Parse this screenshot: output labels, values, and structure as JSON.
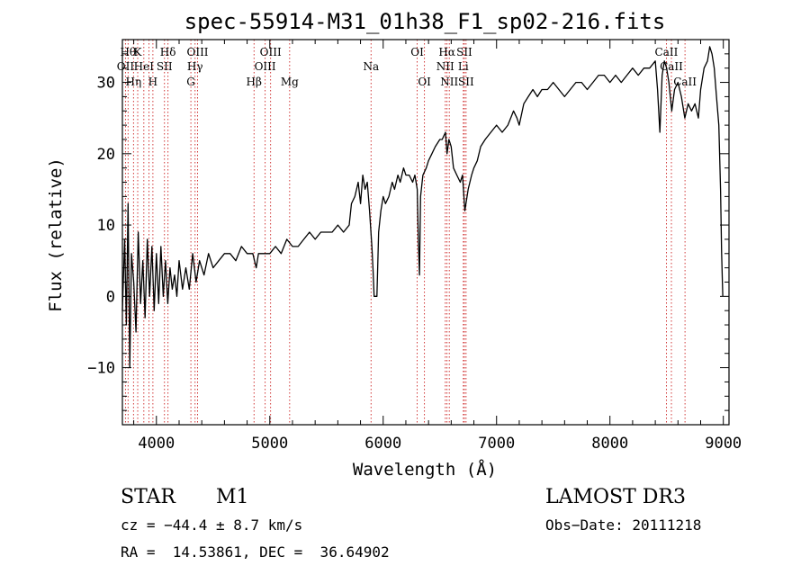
{
  "chart_data": {
    "type": "line",
    "title": "spec-55914-M31_01h38_F1_sp02-216.fits",
    "xlabel": "Wavelength (Å)",
    "ylabel": "Flux (relative)",
    "xlim": [
      3700,
      9050
    ],
    "ylim": [
      -18,
      36
    ],
    "xticks": [
      4000,
      5000,
      6000,
      7000,
      8000,
      9000
    ],
    "yticks": [
      -10,
      0,
      10,
      20,
      30
    ],
    "xtick_labels": [
      "4000",
      "5000",
      "6000",
      "7000",
      "8000",
      "9000"
    ],
    "ytick_labels": [
      "−10",
      "0",
      "10",
      "20",
      "30"
    ],
    "series": [
      {
        "name": "spectrum",
        "points": [
          [
            3700,
            -2
          ],
          [
            3720,
            8
          ],
          [
            3735,
            -4
          ],
          [
            3750,
            13
          ],
          [
            3765,
            -10
          ],
          [
            3780,
            6
          ],
          [
            3800,
            2
          ],
          [
            3820,
            -5
          ],
          [
            3840,
            9
          ],
          [
            3860,
            -1
          ],
          [
            3880,
            5
          ],
          [
            3900,
            -3
          ],
          [
            3920,
            8
          ],
          [
            3940,
            0
          ],
          [
            3960,
            7
          ],
          [
            3980,
            -2
          ],
          [
            4000,
            6
          ],
          [
            4020,
            -1
          ],
          [
            4040,
            7
          ],
          [
            4060,
            0
          ],
          [
            4080,
            5
          ],
          [
            4100,
            -1
          ],
          [
            4120,
            4
          ],
          [
            4140,
            1
          ],
          [
            4160,
            3
          ],
          [
            4180,
            0
          ],
          [
            4200,
            5
          ],
          [
            4230,
            1
          ],
          [
            4260,
            4
          ],
          [
            4290,
            1
          ],
          [
            4320,
            6
          ],
          [
            4350,
            2
          ],
          [
            4380,
            5
          ],
          [
            4420,
            3
          ],
          [
            4460,
            6
          ],
          [
            4500,
            4
          ],
          [
            4550,
            5
          ],
          [
            4600,
            6
          ],
          [
            4650,
            6
          ],
          [
            4700,
            5
          ],
          [
            4750,
            7
          ],
          [
            4800,
            6
          ],
          [
            4850,
            6
          ],
          [
            4880,
            4
          ],
          [
            4900,
            6
          ],
          [
            4950,
            6
          ],
          [
            5000,
            6
          ],
          [
            5050,
            7
          ],
          [
            5100,
            6
          ],
          [
            5150,
            8
          ],
          [
            5200,
            7
          ],
          [
            5250,
            7
          ],
          [
            5300,
            8
          ],
          [
            5350,
            9
          ],
          [
            5400,
            8
          ],
          [
            5450,
            9
          ],
          [
            5500,
            9
          ],
          [
            5550,
            9
          ],
          [
            5600,
            10
          ],
          [
            5650,
            9
          ],
          [
            5700,
            10
          ],
          [
            5720,
            13
          ],
          [
            5750,
            14
          ],
          [
            5780,
            16
          ],
          [
            5800,
            13
          ],
          [
            5820,
            17
          ],
          [
            5840,
            15
          ],
          [
            5860,
            16
          ],
          [
            5880,
            12
          ],
          [
            5900,
            7
          ],
          [
            5910,
            4
          ],
          [
            5920,
            0
          ],
          [
            5945,
            0
          ],
          [
            5960,
            9
          ],
          [
            5980,
            12
          ],
          [
            6000,
            14
          ],
          [
            6020,
            13
          ],
          [
            6050,
            14
          ],
          [
            6080,
            16
          ],
          [
            6100,
            15
          ],
          [
            6130,
            17
          ],
          [
            6150,
            16
          ],
          [
            6180,
            18
          ],
          [
            6200,
            17
          ],
          [
            6230,
            17
          ],
          [
            6260,
            16
          ],
          [
            6280,
            17
          ],
          [
            6300,
            15
          ],
          [
            6310,
            8
          ],
          [
            6320,
            3
          ],
          [
            6330,
            14
          ],
          [
            6350,
            17
          ],
          [
            6380,
            18
          ],
          [
            6400,
            19
          ],
          [
            6430,
            20
          ],
          [
            6460,
            21
          ],
          [
            6500,
            22
          ],
          [
            6520,
            22
          ],
          [
            6550,
            23
          ],
          [
            6563,
            20
          ],
          [
            6580,
            22
          ],
          [
            6600,
            21
          ],
          [
            6620,
            18
          ],
          [
            6650,
            17
          ],
          [
            6680,
            16
          ],
          [
            6700,
            17
          ],
          [
            6720,
            12
          ],
          [
            6750,
            15
          ],
          [
            6780,
            17
          ],
          [
            6800,
            18
          ],
          [
            6830,
            19
          ],
          [
            6860,
            21
          ],
          [
            6900,
            22
          ],
          [
            6950,
            23
          ],
          [
            7000,
            24
          ],
          [
            7050,
            23
          ],
          [
            7100,
            24
          ],
          [
            7150,
            26
          ],
          [
            7180,
            25
          ],
          [
            7200,
            24
          ],
          [
            7240,
            27
          ],
          [
            7280,
            28
          ],
          [
            7320,
            29
          ],
          [
            7360,
            28
          ],
          [
            7400,
            29
          ],
          [
            7450,
            29
          ],
          [
            7500,
            30
          ],
          [
            7550,
            29
          ],
          [
            7600,
            28
          ],
          [
            7650,
            29
          ],
          [
            7700,
            30
          ],
          [
            7750,
            30
          ],
          [
            7800,
            29
          ],
          [
            7850,
            30
          ],
          [
            7900,
            31
          ],
          [
            7950,
            31
          ],
          [
            8000,
            30
          ],
          [
            8050,
            31
          ],
          [
            8100,
            30
          ],
          [
            8150,
            31
          ],
          [
            8200,
            32
          ],
          [
            8250,
            31
          ],
          [
            8300,
            32
          ],
          [
            8350,
            32
          ],
          [
            8400,
            33
          ],
          [
            8420,
            29
          ],
          [
            8440,
            23
          ],
          [
            8460,
            31
          ],
          [
            8480,
            33
          ],
          [
            8500,
            32
          ],
          [
            8520,
            30
          ],
          [
            8545,
            26
          ],
          [
            8570,
            29
          ],
          [
            8600,
            30
          ],
          [
            8630,
            28
          ],
          [
            8660,
            25
          ],
          [
            8690,
            27
          ],
          [
            8720,
            26
          ],
          [
            8750,
            27
          ],
          [
            8780,
            25
          ],
          [
            8800,
            29
          ],
          [
            8830,
            32
          ],
          [
            8860,
            33
          ],
          [
            8880,
            35
          ],
          [
            8900,
            34
          ],
          [
            8920,
            32
          ],
          [
            8940,
            28
          ],
          [
            8960,
            24
          ],
          [
            8975,
            15
          ],
          [
            8985,
            6
          ],
          [
            8995,
            0
          ]
        ]
      }
    ],
    "lines": [
      {
        "wavelength": 3750,
        "row": 0,
        "label": "Hθ"
      },
      {
        "wavelength": 3727,
        "row": 1,
        "label": "OII"
      },
      {
        "wavelength": 3798,
        "row": 2,
        "label": "Hη"
      },
      {
        "wavelength": 3835,
        "row": 0,
        "label": "K"
      },
      {
        "wavelength": 3889,
        "row": 1,
        "label": "HeI"
      },
      {
        "wavelength": 3934,
        "row": 0,
        "label": ""
      },
      {
        "wavelength": 3969,
        "row": 2,
        "label": "H"
      },
      {
        "wavelength": 4071,
        "row": 1,
        "label": "SII"
      },
      {
        "wavelength": 4102,
        "row": 0,
        "label": "Hδ"
      },
      {
        "wavelength": 4304,
        "row": 2,
        "label": "G"
      },
      {
        "wavelength": 4341,
        "row": 1,
        "label": "Hγ"
      },
      {
        "wavelength": 4363,
        "row": 0,
        "label": "OIII"
      },
      {
        "wavelength": 4861,
        "row": 2,
        "label": "Hβ"
      },
      {
        "wavelength": 4959,
        "row": 1,
        "label": "OIII"
      },
      {
        "wavelength": 5007,
        "row": 0,
        "label": "OIII"
      },
      {
        "wavelength": 5175,
        "row": 2,
        "label": "Mg"
      },
      {
        "wavelength": 5893,
        "row": 1,
        "label": "Na"
      },
      {
        "wavelength": 6300,
        "row": 0,
        "label": "OI"
      },
      {
        "wavelength": 6364,
        "row": 2,
        "label": "OI"
      },
      {
        "wavelength": 6548,
        "row": 1,
        "label": "NII"
      },
      {
        "wavelength": 6563,
        "row": 0,
        "label": "Hα"
      },
      {
        "wavelength": 6583,
        "row": 2,
        "label": "NII"
      },
      {
        "wavelength": 6707,
        "row": 1,
        "label": "Li"
      },
      {
        "wavelength": 6716,
        "row": 0,
        "label": "SII"
      },
      {
        "wavelength": 6731,
        "row": 2,
        "label": "SII"
      },
      {
        "wavelength": 8498,
        "row": 0,
        "label": "CaII"
      },
      {
        "wavelength": 8542,
        "row": 1,
        "label": "CaII"
      },
      {
        "wavelength": 8662,
        "row": 2,
        "label": "CaII"
      }
    ]
  },
  "info": {
    "object_type": "STAR",
    "subclass": "M1",
    "survey": "LAMOST DR3",
    "cz": "cz = −44.4 ± 8.7 km/s",
    "obs_date": "Obs−Date: 20111218",
    "coords": "RA =  14.53861, DEC =  36.64902"
  },
  "colors": {
    "spectrum": "#000000",
    "line_markers": "#cc2222",
    "axes": "#000000"
  }
}
